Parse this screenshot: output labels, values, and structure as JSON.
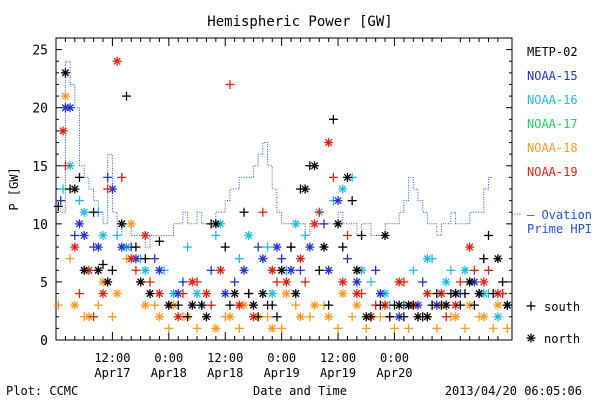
{
  "chart_data": {
    "type": "scatter",
    "title": "Hemispheric Power [GW]",
    "ylabel": "P [GW]",
    "xlabel": "Date and Time",
    "ylim": [
      0,
      26
    ],
    "yticks": [
      0,
      5,
      10,
      15,
      20,
      25
    ],
    "xlim": [
      0,
      97
    ],
    "xticks": [
      {
        "x": 12,
        "line1": "12:00",
        "line2": "Apr17"
      },
      {
        "x": 24,
        "line1": "0:00",
        "line2": "Apr18"
      },
      {
        "x": 36,
        "line1": "12:00",
        "line2": "Apr18"
      },
      {
        "x": 48,
        "line1": "0:00",
        "line2": "Apr19"
      },
      {
        "x": 60,
        "line1": "12:00",
        "line2": "Apr19"
      },
      {
        "x": 72,
        "line1": "0:00",
        "line2": "Apr20"
      }
    ],
    "minor_ticks_per_major": 6,
    "legend": [
      "METP-02",
      "NOAA-15",
      "NOAA-16",
      "NOAA-17",
      "NOAA-18",
      "NOAA-19"
    ],
    "legend_colors": [
      "#000000",
      "#2233cc",
      "#22bbdd",
      "#22cc66",
      "#ff9922",
      "#dd2211"
    ],
    "ovation": {
      "label_line1": "– Ovation",
      "label_line2": "Prime HPI",
      "color": "#2255cc",
      "step": 1,
      "values": [
        12,
        11,
        24,
        22,
        20,
        15,
        14,
        13,
        12,
        11,
        10,
        16,
        11,
        9,
        10,
        10,
        9,
        9,
        9,
        8,
        9,
        9,
        9,
        9,
        9,
        10,
        10,
        11,
        10,
        10,
        11,
        10,
        10,
        10,
        11,
        11,
        12,
        13,
        13,
        14,
        14,
        14,
        15,
        16,
        17,
        15,
        13,
        11,
        10,
        10,
        10,
        10,
        10,
        9,
        10,
        10,
        10,
        10,
        10,
        10,
        11,
        10,
        10,
        10,
        9,
        10,
        10,
        9,
        9,
        9,
        10,
        10,
        10,
        11,
        12,
        14,
        13,
        12,
        11,
        10,
        10,
        9,
        10,
        10,
        11,
        10,
        10,
        10,
        11,
        11,
        11,
        13,
        14
      ]
    },
    "marker_legend": [
      {
        "symbol": "+",
        "label": "south"
      },
      {
        "symbol": "*",
        "label": "north"
      }
    ],
    "series": [
      {
        "name": "METP-02",
        "color": "#000000",
        "south": [
          [
            0.5,
            11.5
          ],
          [
            3,
            13
          ],
          [
            5,
            14
          ],
          [
            8,
            11
          ],
          [
            10,
            6.5
          ],
          [
            12,
            6
          ],
          [
            15,
            21
          ],
          [
            17,
            8
          ],
          [
            19,
            7
          ],
          [
            22,
            8.5
          ],
          [
            26,
            3
          ],
          [
            28,
            2
          ],
          [
            31,
            3
          ],
          [
            33,
            10
          ],
          [
            36,
            8
          ],
          [
            37,
            3
          ],
          [
            40,
            11
          ],
          [
            41,
            4
          ],
          [
            43,
            2
          ],
          [
            45,
            3
          ],
          [
            46,
            3
          ],
          [
            47,
            2
          ],
          [
            50,
            8
          ],
          [
            52,
            13
          ],
          [
            54,
            15
          ],
          [
            56,
            6
          ],
          [
            58,
            3
          ],
          [
            59,
            19
          ],
          [
            61,
            8
          ],
          [
            63,
            12
          ],
          [
            65,
            9
          ],
          [
            67,
            2
          ],
          [
            69,
            3
          ],
          [
            71,
            2
          ],
          [
            72,
            3
          ],
          [
            74,
            2
          ],
          [
            76,
            3
          ],
          [
            78,
            2
          ],
          [
            80,
            3
          ],
          [
            81,
            4
          ],
          [
            82,
            3
          ],
          [
            84,
            4
          ],
          [
            86,
            3
          ],
          [
            87,
            4
          ],
          [
            89,
            3
          ],
          [
            91,
            7
          ],
          [
            92,
            9
          ],
          [
            93,
            4
          ],
          [
            95,
            5
          ]
        ],
        "north": [
          [
            2,
            23
          ],
          [
            4,
            13
          ],
          [
            6,
            6
          ],
          [
            9,
            6
          ],
          [
            11,
            5
          ],
          [
            14,
            10
          ],
          [
            18,
            5
          ],
          [
            20,
            4
          ],
          [
            24,
            3
          ],
          [
            29,
            3
          ],
          [
            32,
            2
          ],
          [
            34,
            10
          ],
          [
            38,
            4
          ],
          [
            42,
            3
          ],
          [
            44,
            4
          ],
          [
            48,
            6
          ],
          [
            51,
            4
          ],
          [
            53,
            13
          ],
          [
            55,
            15
          ],
          [
            57,
            8
          ],
          [
            60,
            10
          ],
          [
            62,
            14
          ],
          [
            64,
            6
          ],
          [
            66,
            2
          ],
          [
            70,
            9
          ],
          [
            73,
            3
          ],
          [
            75,
            3
          ],
          [
            77,
            2
          ],
          [
            79,
            2
          ],
          [
            83,
            3
          ],
          [
            85,
            4
          ],
          [
            88,
            5
          ],
          [
            90,
            4
          ],
          [
            94,
            7
          ],
          [
            96,
            3
          ]
        ]
      },
      {
        "name": "NOAA-15",
        "color": "#2233cc",
        "south": [
          [
            1,
            12
          ],
          [
            4,
            9
          ],
          [
            8,
            8
          ],
          [
            11,
            14
          ],
          [
            16,
            8
          ],
          [
            21,
            7
          ],
          [
            27,
            5
          ],
          [
            33,
            6
          ],
          [
            38,
            5
          ],
          [
            43,
            8
          ],
          [
            48,
            7
          ],
          [
            52,
            6
          ],
          [
            57,
            10
          ],
          [
            62,
            7
          ],
          [
            68,
            6
          ],
          [
            74,
            3
          ],
          [
            78,
            5
          ],
          [
            82,
            4
          ],
          [
            86,
            4
          ],
          [
            90,
            4
          ],
          [
            95,
            4
          ]
        ],
        "north": [
          [
            2,
            20
          ],
          [
            3,
            20
          ],
          [
            5,
            10
          ],
          [
            6,
            9
          ],
          [
            9,
            8
          ],
          [
            12,
            13
          ],
          [
            14,
            8
          ],
          [
            17,
            7
          ],
          [
            22,
            6
          ],
          [
            26,
            4
          ],
          [
            31,
            3
          ],
          [
            36,
            4
          ],
          [
            40,
            6
          ],
          [
            44,
            7
          ],
          [
            47,
            8
          ],
          [
            50,
            6
          ],
          [
            54,
            8
          ],
          [
            58,
            6
          ],
          [
            60,
            12
          ],
          [
            64,
            5
          ],
          [
            69,
            4
          ],
          [
            73,
            2
          ],
          [
            77,
            3
          ],
          [
            81,
            3
          ],
          [
            85,
            4
          ],
          [
            89,
            5
          ],
          [
            96,
            3
          ]
        ]
      },
      {
        "name": "NOAA-16",
        "color": "#22bbdd",
        "south": [
          [
            1.5,
            13
          ],
          [
            5,
            12
          ],
          [
            9,
            11
          ],
          [
            13,
            9
          ],
          [
            18,
            7
          ],
          [
            23,
            6
          ],
          [
            28,
            8
          ],
          [
            34,
            9
          ],
          [
            39,
            7
          ],
          [
            45,
            8
          ],
          [
            49,
            6
          ],
          [
            53,
            9
          ],
          [
            59,
            12
          ],
          [
            63,
            14
          ],
          [
            67,
            5
          ],
          [
            71,
            3
          ],
          [
            76,
            6
          ],
          [
            80,
            7
          ],
          [
            84,
            6
          ],
          [
            88,
            5
          ],
          [
            92,
            4
          ]
        ],
        "north": [
          [
            3,
            15
          ],
          [
            6,
            11
          ],
          [
            10,
            9
          ],
          [
            15,
            8
          ],
          [
            19,
            6
          ],
          [
            25,
            4
          ],
          [
            30,
            4
          ],
          [
            35,
            10
          ],
          [
            41,
            9
          ],
          [
            46,
            4
          ],
          [
            51,
            10
          ],
          [
            56,
            11
          ],
          [
            61,
            13
          ],
          [
            65,
            6
          ],
          [
            70,
            4
          ],
          [
            75,
            3
          ],
          [
            79,
            7
          ],
          [
            83,
            5
          ],
          [
            87,
            6
          ],
          [
            91,
            4
          ],
          [
            94,
            2
          ]
        ]
      },
      {
        "name": "NOAA-17",
        "color": "#22cc66",
        "south": [],
        "north": []
      },
      {
        "name": "NOAA-18",
        "color": "#ff9922",
        "south": [
          [
            0.5,
            3
          ],
          [
            3,
            7
          ],
          [
            6,
            2
          ],
          [
            9,
            3
          ],
          [
            12,
            2
          ],
          [
            15,
            7
          ],
          [
            18,
            5
          ],
          [
            21,
            3
          ],
          [
            24,
            1
          ],
          [
            27,
            2
          ],
          [
            30,
            1
          ],
          [
            33,
            3
          ],
          [
            36,
            2
          ],
          [
            39,
            1
          ],
          [
            42,
            3
          ],
          [
            45,
            2
          ],
          [
            48,
            1
          ],
          [
            51,
            3
          ],
          [
            54,
            2
          ],
          [
            57,
            3
          ],
          [
            60,
            1
          ],
          [
            63,
            2
          ],
          [
            66,
            1
          ],
          [
            69,
            2
          ],
          [
            72,
            1
          ],
          [
            75,
            1
          ],
          [
            78,
            2
          ],
          [
            81,
            1
          ],
          [
            84,
            2
          ],
          [
            87,
            1
          ],
          [
            90,
            2
          ],
          [
            93,
            1
          ],
          [
            96,
            1
          ]
        ],
        "north": [
          [
            2,
            21
          ],
          [
            4,
            3
          ],
          [
            7,
            2
          ],
          [
            10,
            5
          ],
          [
            13,
            4
          ],
          [
            16,
            10
          ],
          [
            19,
            3
          ],
          [
            22,
            2
          ],
          [
            25,
            3
          ],
          [
            28,
            2
          ],
          [
            31,
            3
          ],
          [
            34,
            1
          ],
          [
            37,
            2
          ],
          [
            40,
            3
          ],
          [
            43,
            2
          ],
          [
            46,
            1
          ],
          [
            49,
            4
          ],
          [
            52,
            2
          ],
          [
            55,
            3
          ],
          [
            58,
            2
          ],
          [
            61,
            4
          ],
          [
            64,
            3
          ],
          [
            67,
            2
          ],
          [
            70,
            3
          ],
          [
            73,
            2
          ],
          [
            76,
            3
          ],
          [
            79,
            2
          ],
          [
            82,
            3
          ],
          [
            85,
            2
          ],
          [
            88,
            3
          ],
          [
            91,
            2
          ],
          [
            94,
            3
          ]
        ]
      },
      {
        "name": "NOAA-19",
        "color": "#dd2211",
        "south": [
          [
            2,
            15
          ],
          [
            5,
            4
          ],
          [
            8,
            2
          ],
          [
            11,
            13
          ],
          [
            14,
            14
          ],
          [
            17,
            6
          ],
          [
            20,
            5
          ],
          [
            24,
            3
          ],
          [
            27,
            4
          ],
          [
            30,
            5
          ],
          [
            33,
            3
          ],
          [
            37,
            22
          ],
          [
            41,
            4
          ],
          [
            44,
            11
          ],
          [
            47,
            5
          ],
          [
            50,
            8
          ],
          [
            53,
            5
          ],
          [
            56,
            11
          ],
          [
            59,
            14
          ],
          [
            62,
            9
          ],
          [
            65,
            4
          ],
          [
            68,
            3
          ],
          [
            71,
            2
          ],
          [
            74,
            5
          ],
          [
            77,
            2
          ],
          [
            80,
            3
          ],
          [
            83,
            2
          ],
          [
            86,
            5
          ],
          [
            89,
            6
          ],
          [
            92,
            6
          ],
          [
            95,
            4
          ]
        ],
        "north": [
          [
            1.5,
            18
          ],
          [
            4,
            8
          ],
          [
            7,
            6
          ],
          [
            10,
            4
          ],
          [
            13,
            24
          ],
          [
            16,
            7
          ],
          [
            19,
            9
          ],
          [
            22,
            4
          ],
          [
            26,
            2
          ],
          [
            29,
            5
          ],
          [
            32,
            4
          ],
          [
            35,
            6
          ],
          [
            39,
            3
          ],
          [
            42,
            2
          ],
          [
            46,
            6
          ],
          [
            49,
            5
          ],
          [
            52,
            7
          ],
          [
            55,
            10
          ],
          [
            58,
            17
          ],
          [
            61,
            5
          ],
          [
            64,
            4
          ],
          [
            67,
            2
          ],
          [
            70,
            3
          ],
          [
            73,
            5
          ],
          [
            76,
            3
          ],
          [
            79,
            4
          ],
          [
            82,
            4
          ],
          [
            85,
            3
          ],
          [
            88,
            8
          ],
          [
            91,
            5
          ],
          [
            94,
            4
          ]
        ]
      }
    ]
  },
  "footer": {
    "plot_source": "Plot: CCMC",
    "timestamp": "2013/04/20 06:05:06"
  }
}
